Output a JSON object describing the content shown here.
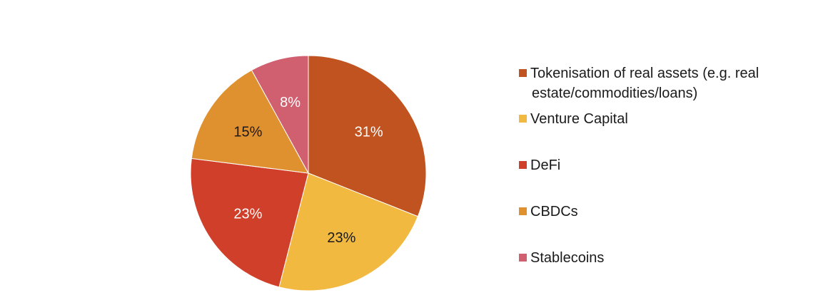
{
  "chart_data": {
    "type": "pie",
    "title": "",
    "start": "12 o'clock",
    "direction": "clockwise",
    "legend_position": "right",
    "slices": [
      {
        "label": "Tokenisation of real assets (e.g. real estate/commodities/loans)",
        "legend_lines": [
          "Tokenisation of real assets (e.g. real",
          "estate/commodities/loans)"
        ],
        "value": 31,
        "display": "31%",
        "color": "#c0531f",
        "label_color": "#ffffff"
      },
      {
        "label": "Venture Capital",
        "legend_lines": [
          "Venture Capital"
        ],
        "value": 23,
        "display": "23%",
        "color": "#f2b940",
        "label_color": "#1a1a1a"
      },
      {
        "label": "DeFi",
        "legend_lines": [
          "DeFi"
        ],
        "value": 23,
        "display": "23%",
        "color": "#cf3f2a",
        "label_color": "#ffffff"
      },
      {
        "label": "CBDCs",
        "legend_lines": [
          "CBDCs"
        ],
        "value": 15,
        "display": "15%",
        "color": "#e0912f",
        "label_color": "#1a1a1a"
      },
      {
        "label": "Stablecoins",
        "legend_lines": [
          "Stablecoins"
        ],
        "value": 8,
        "display": "8%",
        "color": "#d05f70",
        "label_color": "#ffffff"
      }
    ]
  }
}
